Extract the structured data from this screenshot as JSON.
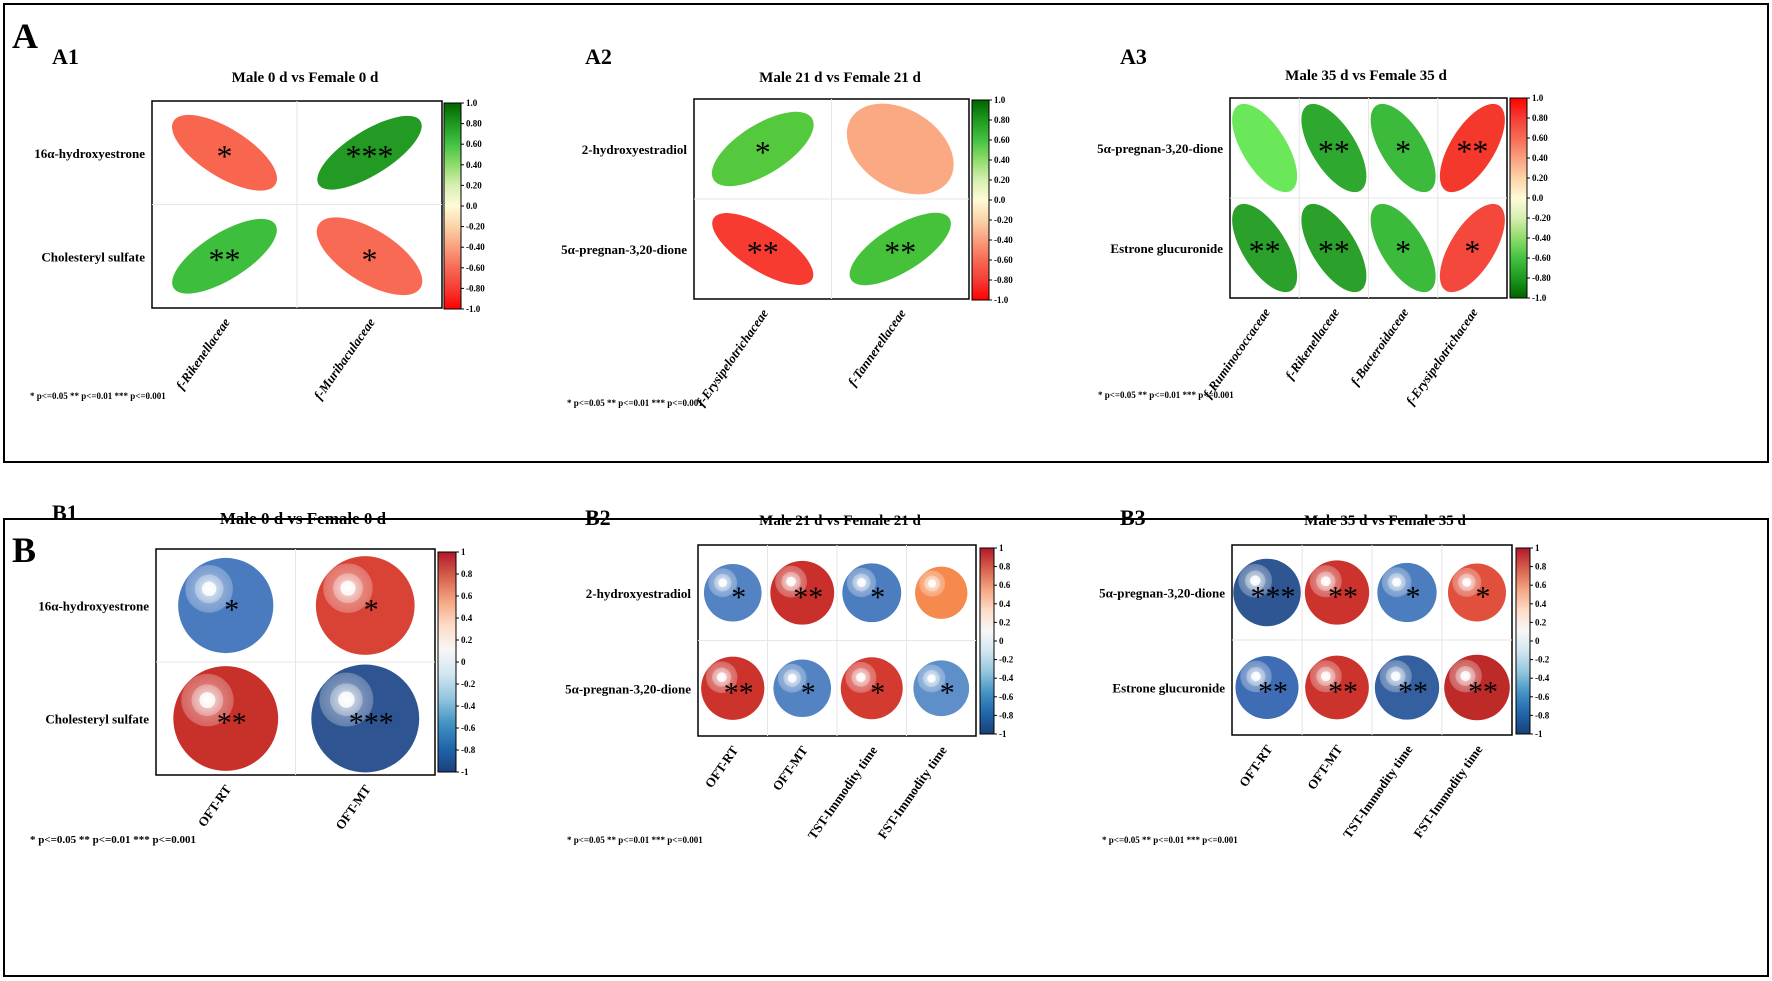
{
  "figure": {
    "panel_a_label": "A",
    "panel_b_label": "B",
    "significance_note": "* p<=0.05  ** p<=0.01  *** p<=0.001"
  },
  "colorbars": {
    "A_ticks": [
      "1.0",
      "0.80",
      "0.60",
      "0.40",
      "0.20",
      "0.0",
      "-0.20",
      "-0.40",
      "-0.60",
      "-0.80",
      "-1.0"
    ],
    "A_ticks_flipped": [
      "1.0",
      "0.80",
      "0.60",
      "0.40",
      "0.20",
      "0.0",
      "-0.20",
      "-0.40",
      "-0.60",
      "-0.80",
      "-1.0"
    ],
    "B_ticks": [
      "1",
      "0.8",
      "0.6",
      "0.4",
      "0.2",
      "0",
      "-0.2",
      "-0.4",
      "-0.6",
      "-0.8",
      "-1"
    ],
    "A_colors_top_to_bottom": [
      "#006400",
      "#1e9a1e",
      "#44c244",
      "#8fdc6a",
      "#d6efb0",
      "#fffbd8",
      "#fcd3a8",
      "#fa9f7f",
      "#f76a55",
      "#f53d35",
      "#ff0000"
    ],
    "A3_colors_top_to_bottom": [
      "#ff0000",
      "#f53d35",
      "#f76a55",
      "#fa9f7f",
      "#fcd3a8",
      "#fffbd8",
      "#d6efb0",
      "#8fdc6a",
      "#44c244",
      "#1e9a1e",
      "#006400"
    ],
    "B_colors_top_to_bottom": [
      "#b2182b",
      "#d6604d",
      "#f4a582",
      "#fddbc7",
      "#f7f7f7",
      "#d1e5f0",
      "#92c5de",
      "#4393c3",
      "#2166ac",
      "#1a3f7a"
    ]
  },
  "chart_data": [
    {
      "id": "A1",
      "type": "heatmap",
      "title": "Male 0 d vs Female 0 d",
      "rows": [
        "16α-hydroxyestrone",
        "Cholesteryl sulfate"
      ],
      "columns": [
        "f-Rikenellaceae",
        "f-Muribaculaceae"
      ],
      "values": [
        [
          -0.7,
          0.82
        ],
        [
          0.72,
          -0.66
        ]
      ],
      "significance": [
        [
          "*",
          "***"
        ],
        [
          "**",
          "*"
        ]
      ],
      "scale": [
        -1,
        1
      ],
      "colors": [
        [
          "#f96650",
          "#239a23"
        ],
        [
          "#3dbf3d",
          "#f96a54"
        ]
      ]
    },
    {
      "id": "A2",
      "type": "heatmap",
      "title": "Male 21 d vs Female 21 d",
      "rows": [
        "2-hydroxyestradiol",
        "5α-pregnan-3,20-dione"
      ],
      "columns": [
        "f-Erysipelotrichaceae",
        "f-Tannerellaceae"
      ],
      "values": [
        [
          0.68,
          -0.4
        ],
        [
          -0.78,
          0.72
        ]
      ],
      "significance": [
        [
          "*",
          ""
        ],
        [
          "**",
          "**"
        ]
      ],
      "scale": [
        -1,
        1
      ],
      "colors": [
        [
          "#55c93d",
          "#fba982"
        ],
        [
          "#f73b31",
          "#45c13a"
        ]
      ]
    },
    {
      "id": "A3",
      "type": "heatmap",
      "title": "Male 35 d vs Female 35 d",
      "rows": [
        "5α-pregnan-3,20-dione",
        "Estrone glucuronide"
      ],
      "columns": [
        "f-Ruminococcaceae",
        "f-Rikenellaceae",
        "f-Bacteroidaceae",
        "f-Erysipelotrichaceae"
      ],
      "values": [
        [
          -0.62,
          -0.78,
          -0.7,
          0.86
        ],
        [
          -0.8,
          -0.8,
          -0.72,
          0.76
        ]
      ],
      "significance": [
        [
          "",
          "**",
          "*",
          "**"
        ],
        [
          "**",
          "**",
          "*",
          "*"
        ]
      ],
      "scale": [
        -1,
        1
      ],
      "colors": [
        [
          "#6ae85a",
          "#2ea82e",
          "#3cba3c",
          "#f4382c"
        ],
        [
          "#2ba02b",
          "#2ba02b",
          "#3cba3c",
          "#f4483c"
        ]
      ]
    },
    {
      "id": "B1",
      "type": "heatmap",
      "title": "Male 0 d vs Female 0 d",
      "rows": [
        "16α-hydroxyestrone",
        "Cholesteryl sulfate"
      ],
      "columns": [
        "OFT-RT",
        "OFT-MT"
      ],
      "values": [
        [
          -0.65,
          0.72
        ],
        [
          0.84,
          -0.9
        ]
      ],
      "significance": [
        [
          "*",
          "*"
        ],
        [
          "**",
          "***"
        ]
      ],
      "scale": [
        -1,
        1
      ],
      "colors": [
        [
          "#4a7bbf",
          "#d94336"
        ],
        [
          "#c8302a",
          "#2e5591"
        ]
      ]
    },
    {
      "id": "B2",
      "type": "heatmap",
      "title": "Male 21 d vs Female 21 d",
      "rows": [
        "2-hydroxyestradiol",
        "5α-pregnan-3,20-dione"
      ],
      "columns": [
        "OFT-RT",
        "OFT-MT",
        "TST-Immodity time",
        "FST-Immodity time"
      ],
      "values": [
        [
          -0.62,
          0.82,
          -0.66,
          0.45
        ],
        [
          0.8,
          -0.62,
          0.76,
          -0.56
        ]
      ],
      "significance": [
        [
          "*",
          "**",
          "*",
          ""
        ],
        [
          "**",
          "*",
          "*",
          "*"
        ]
      ],
      "scale": [
        -1,
        1
      ],
      "colors": [
        [
          "#5383c3",
          "#c9302b",
          "#4c7dbf",
          "#f5894e"
        ],
        [
          "#cc332c",
          "#5383c3",
          "#d33a30",
          "#5e8fc8"
        ]
      ]
    },
    {
      "id": "B3",
      "type": "heatmap",
      "title": "Male 35 d vs Female 35 d",
      "rows": [
        "5α-pregnan-3,20-dione",
        "Estrone glucuronide"
      ],
      "columns": [
        "OFT-RT",
        "OFT-MT",
        "TST-Immodity time",
        "FST-Immodity time"
      ],
      "values": [
        [
          -0.92,
          0.82,
          -0.66,
          0.62
        ],
        [
          -0.78,
          0.8,
          -0.82,
          0.86
        ]
      ],
      "significance": [
        [
          "***",
          "**",
          "*",
          "*"
        ],
        [
          "**",
          "**",
          "**",
          "**"
        ]
      ],
      "scale": [
        -1,
        1
      ],
      "colors": [
        [
          "#2e5693",
          "#cc332c",
          "#4c7dbf",
          "#e0503c"
        ],
        [
          "#3f6db5",
          "#cc332c",
          "#34609f",
          "#bd2a28"
        ]
      ]
    }
  ]
}
